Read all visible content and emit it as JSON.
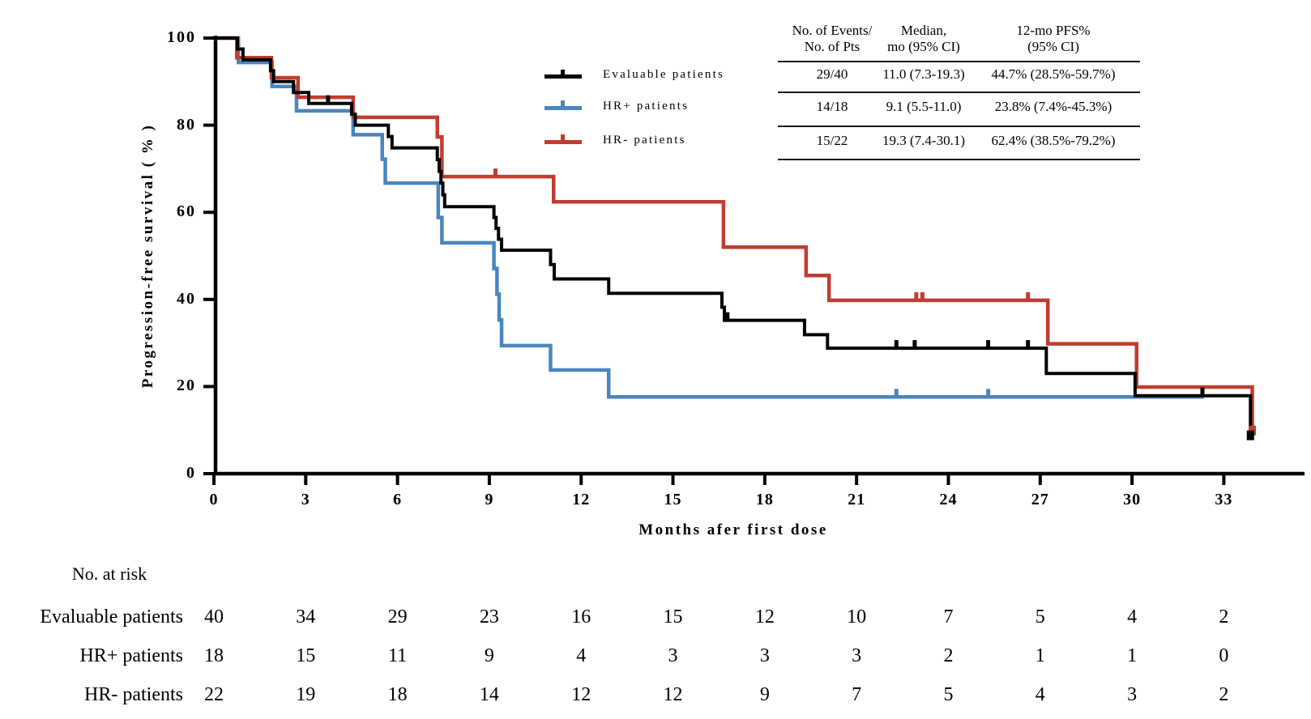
{
  "chart_data": {
    "type": "line",
    "subtype": "kaplan-meier-step",
    "xlabel": "Months afer first dose",
    "ylabel": "Progression-free survival ( % )",
    "x_ticks": [
      0,
      3,
      6,
      9,
      12,
      15,
      18,
      21,
      24,
      27,
      30,
      33
    ],
    "y_ticks": [
      100,
      80,
      60,
      40,
      20,
      0
    ],
    "xlim": [
      0,
      35.6
    ],
    "ylim": [
      0,
      100
    ],
    "grid": false,
    "series": [
      {
        "name": "Evaluable patients",
        "color": "#000000",
        "start": [
          0,
          100
        ],
        "steps": [
          [
            0.77,
            97.5
          ],
          [
            0.95,
            95.0
          ],
          [
            1.85,
            92.5
          ],
          [
            1.95,
            90.0
          ],
          [
            2.6,
            87.5
          ],
          [
            3.1,
            85.0
          ],
          [
            4.5,
            82.5
          ],
          [
            4.62,
            80.0
          ],
          [
            5.7,
            77.4
          ],
          [
            5.82,
            74.8
          ],
          [
            7.3,
            72.1
          ],
          [
            7.36,
            69.4
          ],
          [
            7.42,
            66.7
          ],
          [
            7.48,
            64.0
          ],
          [
            7.54,
            61.3
          ],
          [
            9.15,
            58.8
          ],
          [
            9.22,
            56.3
          ],
          [
            9.3,
            53.8
          ],
          [
            9.4,
            51.3
          ],
          [
            11.0,
            48.0
          ],
          [
            11.12,
            44.7
          ],
          [
            12.9,
            41.4
          ],
          [
            16.6,
            38.2
          ],
          [
            16.68,
            35.2
          ],
          [
            19.3,
            31.9
          ],
          [
            20.05,
            28.8
          ],
          [
            27.2,
            23.0
          ],
          [
            30.1,
            17.9
          ],
          [
            33.87,
            8.8
          ]
        ],
        "end_month": 33.87,
        "censor_ticks": [
          [
            3.73,
            85.0
          ],
          [
            16.78,
            35.2
          ],
          [
            22.3,
            28.8
          ],
          [
            22.9,
            28.8
          ],
          [
            25.3,
            28.8
          ],
          [
            26.6,
            28.8
          ],
          [
            32.3,
            17.9
          ]
        ],
        "end_marker": [
          33.87,
          8.8
        ]
      },
      {
        "name": "HR+ patients",
        "color": "#4a86bd",
        "start": [
          0,
          100
        ],
        "steps": [
          [
            0.8,
            94.4
          ],
          [
            1.9,
            88.9
          ],
          [
            2.7,
            83.3
          ],
          [
            4.55,
            77.8
          ],
          [
            5.5,
            72.2
          ],
          [
            5.6,
            66.7
          ],
          [
            7.33,
            58.8
          ],
          [
            7.45,
            53.0
          ],
          [
            9.15,
            47.1
          ],
          [
            9.25,
            41.2
          ],
          [
            9.32,
            35.3
          ],
          [
            9.4,
            29.4
          ],
          [
            11.0,
            23.8
          ],
          [
            12.9,
            17.6
          ]
        ],
        "end_month": 32.35,
        "censor_ticks": [
          [
            22.3,
            17.6
          ],
          [
            25.3,
            17.6
          ]
        ],
        "end_marker": null
      },
      {
        "name": "HR- patients",
        "color": "#c03d2f",
        "start": [
          0,
          100
        ],
        "steps": [
          [
            0.75,
            95.5
          ],
          [
            1.88,
            90.9
          ],
          [
            2.75,
            86.4
          ],
          [
            4.55,
            81.8
          ],
          [
            7.3,
            77.3
          ],
          [
            7.45,
            68.2
          ],
          [
            11.1,
            62.4
          ],
          [
            16.65,
            52.0
          ],
          [
            19.35,
            45.5
          ],
          [
            20.1,
            39.8
          ],
          [
            27.25,
            29.8
          ],
          [
            30.15,
            19.9
          ],
          [
            33.93,
            9.9
          ]
        ],
        "end_month": 33.93,
        "censor_ticks": [
          [
            9.2,
            68.2
          ],
          [
            22.95,
            39.8
          ],
          [
            23.15,
            39.8
          ],
          [
            26.6,
            39.8
          ]
        ],
        "end_marker": [
          33.93,
          9.9
        ]
      }
    ]
  },
  "legend": {
    "items": [
      {
        "label": "Evaluable patients",
        "color": "#000000"
      },
      {
        "label": "HR+ patients",
        "color": "#4a86bd"
      },
      {
        "label": "HR- patients",
        "color": "#c03d2f"
      }
    ]
  },
  "stats_table": {
    "columns": [
      {
        "line1": "No. of Events/",
        "line2": "No. of Pts"
      },
      {
        "line1": "Median,",
        "line2": "mo (95% CI)"
      },
      {
        "line1": "12-mo PFS%",
        "line2": "(95% CI)"
      }
    ],
    "rows": [
      {
        "events": "29/40",
        "median": "11.0 (7.3-19.3)",
        "pfs": "44.7% (28.5%-59.7%)"
      },
      {
        "events": "14/18",
        "median": "9.1 (5.5-11.0)",
        "pfs": "23.8% (7.4%-45.3%)"
      },
      {
        "events": "15/22",
        "median": "19.3 (7.4-30.1)",
        "pfs": "62.4% (38.5%-79.2%)"
      }
    ]
  },
  "risk_table": {
    "title": "No. at risk",
    "rows": [
      {
        "label": "Evaluable patients",
        "values": [
          40,
          34,
          29,
          23,
          16,
          15,
          12,
          10,
          7,
          5,
          4,
          2
        ]
      },
      {
        "label": "HR+ patients",
        "values": [
          18,
          15,
          11,
          9,
          4,
          3,
          3,
          3,
          2,
          1,
          1,
          0
        ]
      },
      {
        "label": "HR- patients",
        "values": [
          22,
          19,
          18,
          14,
          12,
          12,
          9,
          7,
          5,
          4,
          3,
          2
        ]
      }
    ]
  }
}
